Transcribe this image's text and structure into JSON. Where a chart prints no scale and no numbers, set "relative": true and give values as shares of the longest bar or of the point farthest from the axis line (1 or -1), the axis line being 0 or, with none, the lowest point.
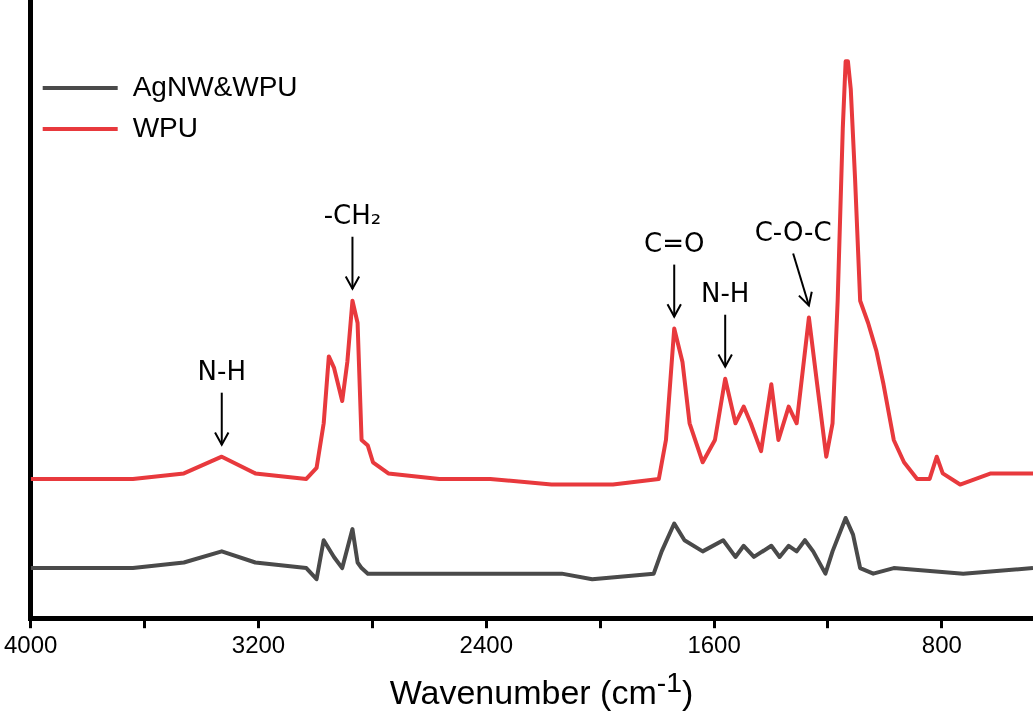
{
  "chart_data": {
    "type": "line",
    "relative": true,
    "xlabel": "Wavenumber (cm$^{-1}$)",
    "xlim": [
      4000,
      480
    ],
    "xticks": [
      4000,
      {
        "value": 3600,
        "label": null
      },
      3200,
      {
        "value": 2800,
        "label": null
      },
      2400,
      {
        "value": 2000,
        "label": null
      },
      1600,
      {
        "value": 1200,
        "label": null
      },
      800
    ],
    "legend": "top left",
    "grid": false,
    "marker": "none",
    "line_style": "solid",
    "annotations": [
      {
        "text": "N-H",
        "x": 3329,
        "y": 0.29
      },
      {
        "text": "-CH₂",
        "x": 2870,
        "y": 0.57
      },
      {
        "text": "C=O",
        "x": 1740,
        "y": 0.52
      },
      {
        "text": "N-H",
        "x": 1561,
        "y": 0.43
      },
      {
        "text": "C-O-C",
        "x": 1267,
        "y": 0.54
      }
    ],
    "series": [
      {
        "name": "AgNW&WPU",
        "color": "#4a4a4a",
        "x": [
          4000,
          3641,
          3462,
          3329,
          3211,
          3032,
          2996,
          2971,
          2935,
          2906,
          2870,
          2852,
          2838,
          2816,
          2744,
          2314,
          2135,
          2028,
          1812,
          1784,
          1740,
          1704,
          1640,
          1568,
          1525,
          1496,
          1460,
          1399,
          1370,
          1338,
          1310,
          1281,
          1252,
          1209,
          1184,
          1138,
          1112,
          1087,
          1041,
          969,
          725,
          480
        ],
        "values": [
          0.09,
          0.09,
          0.1,
          0.12,
          0.1,
          0.09,
          0.07,
          0.14,
          0.11,
          0.09,
          0.16,
          0.1,
          0.09,
          0.08,
          0.08,
          0.08,
          0.08,
          0.07,
          0.08,
          0.12,
          0.17,
          0.14,
          0.12,
          0.14,
          0.11,
          0.13,
          0.11,
          0.13,
          0.11,
          0.13,
          0.12,
          0.14,
          0.12,
          0.08,
          0.12,
          0.18,
          0.15,
          0.09,
          0.08,
          0.09,
          0.08,
          0.09
        ]
      },
      {
        "name": "WPU",
        "color": "#e8393d",
        "x": [
          4000,
          3641,
          3462,
          3329,
          3211,
          3032,
          2996,
          2971,
          2953,
          2935,
          2906,
          2888,
          2870,
          2852,
          2838,
          2816,
          2798,
          2744,
          2565,
          2386,
          2171,
          1955,
          1794,
          1769,
          1740,
          1711,
          1686,
          1640,
          1597,
          1561,
          1525,
          1496,
          1471,
          1435,
          1399,
          1374,
          1338,
          1310,
          1267,
          1238,
          1206,
          1184,
          1166,
          1148,
          1138,
          1130,
          1120,
          1105,
          1087,
          1059,
          1030,
          1005,
          969,
          933,
          887,
          843,
          818,
          797,
          736,
          628,
          556,
          480
        ],
        "values": [
          0.25,
          0.25,
          0.26,
          0.29,
          0.26,
          0.25,
          0.27,
          0.35,
          0.47,
          0.45,
          0.39,
          0.46,
          0.57,
          0.53,
          0.32,
          0.31,
          0.28,
          0.26,
          0.25,
          0.25,
          0.24,
          0.24,
          0.25,
          0.32,
          0.52,
          0.46,
          0.35,
          0.28,
          0.32,
          0.43,
          0.35,
          0.38,
          0.35,
          0.3,
          0.42,
          0.32,
          0.38,
          0.35,
          0.54,
          0.42,
          0.29,
          0.35,
          0.57,
          0.88,
          1.0,
          1.0,
          0.95,
          0.79,
          0.57,
          0.53,
          0.48,
          0.42,
          0.32,
          0.28,
          0.25,
          0.25,
          0.29,
          0.26,
          0.24,
          0.26,
          0.26,
          0.26
        ]
      }
    ]
  }
}
